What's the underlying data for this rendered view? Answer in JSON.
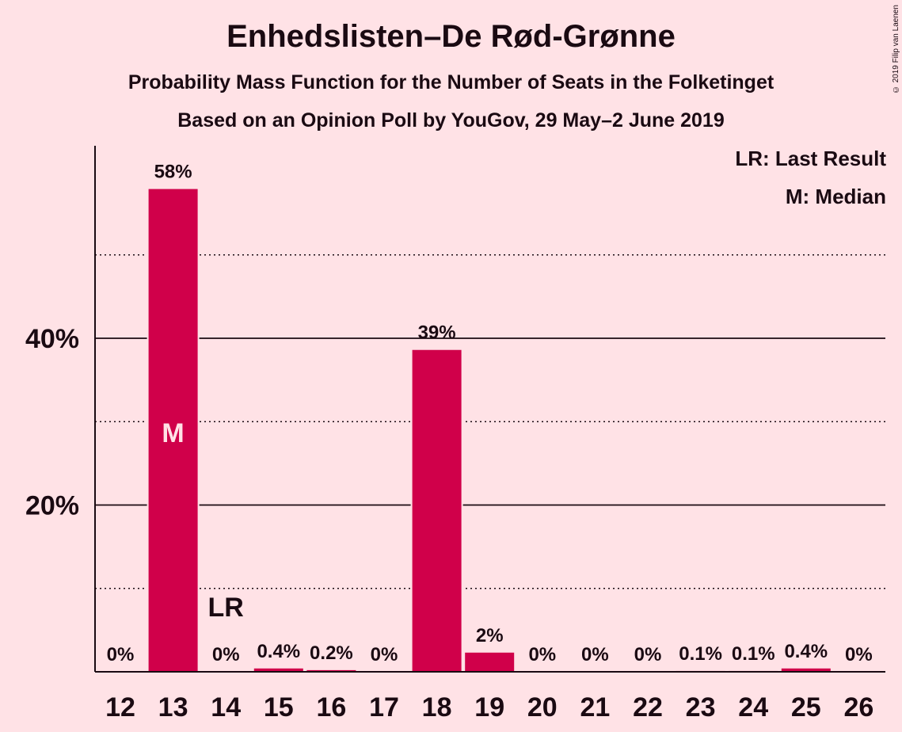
{
  "chart_data": {
    "type": "bar",
    "title": "Enhedslisten–De Rød-Grønne",
    "subtitle": "Probability Mass Function for the Number of Seats in the Folketinget",
    "subtitle2": "Based on an Opinion Poll by YouGov, 29 May–2 June 2019",
    "copyright": "© 2019 Filip van Laenen",
    "legend": [
      "LR: Last Result",
      "M: Median"
    ],
    "categories": [
      "12",
      "13",
      "14",
      "15",
      "16",
      "17",
      "18",
      "19",
      "20",
      "21",
      "22",
      "23",
      "24",
      "25",
      "26"
    ],
    "values": [
      0,
      58,
      0,
      0.4,
      0.2,
      0,
      39,
      2,
      0,
      0,
      0,
      0.1,
      0.1,
      0.4,
      0
    ],
    "plot_values": [
      0,
      57.9,
      0,
      0.4,
      0.2,
      0,
      38.6,
      2.3,
      0,
      0,
      0,
      0.1,
      0.1,
      0.4,
      0
    ],
    "data_labels": [
      "0%",
      "58%",
      "0%",
      "0.4%",
      "0.2%",
      "0%",
      "39%",
      "2%",
      "0%",
      "0%",
      "0%",
      "0.1%",
      "0.1%",
      "0.4%",
      "0%"
    ],
    "y_ticks": [
      {
        "value": 20,
        "label": "20%"
      },
      {
        "value": 40,
        "label": "40%"
      }
    ],
    "minor_gridlines": [
      10,
      30,
      50
    ],
    "ylim": [
      0,
      63
    ],
    "median_seat": "13",
    "median_mark": "M",
    "last_result_seat": "14",
    "last_result_mark": "LR",
    "colors": {
      "bar": "#d0004a",
      "background": "#ffe2e6",
      "text": "#1a0a12",
      "median_text": "#ffe2e6"
    }
  }
}
